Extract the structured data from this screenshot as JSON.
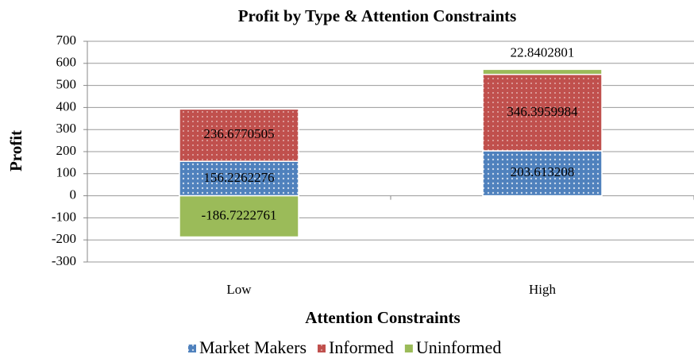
{
  "chart_data": {
    "type": "stacked_bar",
    "title": "Profit by Type & Attention Constraints",
    "x_label": "Attention Constraints",
    "y_label": "Profit",
    "categories": [
      "Low",
      "High"
    ],
    "series": [
      {
        "name": "Market Makers",
        "color": "#4f81bd",
        "values": [
          156.2262276,
          203.613208
        ]
      },
      {
        "name": "Informed",
        "color": "#c0504d",
        "values": [
          236.6770505,
          346.3959984
        ]
      },
      {
        "name": "Uninformed",
        "color": "#9bbb59",
        "values": [
          -186.7222761,
          22.8402801
        ]
      }
    ],
    "ylim": [
      -300,
      700
    ],
    "yticks": [
      -300,
      -200,
      -100,
      0,
      100,
      200,
      300,
      400,
      500,
      600,
      700
    ],
    "grid": true,
    "legend": "bottom"
  }
}
